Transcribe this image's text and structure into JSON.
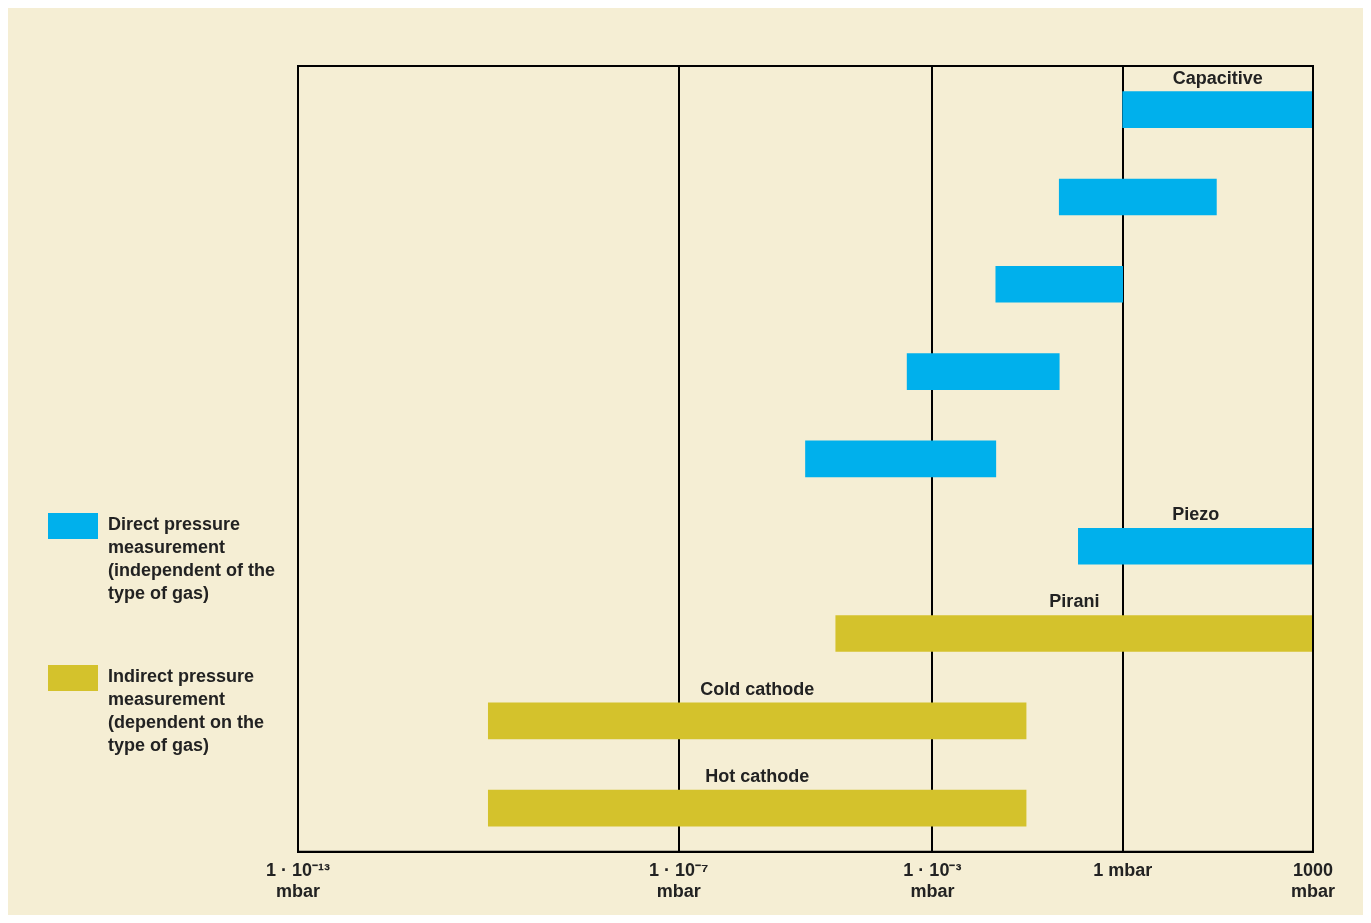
{
  "chart_data": {
    "type": "bar",
    "orientation": "horizontal",
    "log": "x",
    "grid": "x",
    "legend": "left",
    "categories": [
      "Capacitive",
      null,
      null,
      null,
      null,
      "Piezo",
      "Pirani",
      "Cold cathode",
      "Hot cathode"
    ],
    "series": [
      {
        "name": "Direct pressure measurement (independent of the type of gas)",
        "color": "#00b0ec",
        "base": [
          1,
          0.1,
          0.01,
          0.0004,
          1e-05,
          0.2,
          null,
          null,
          null
        ],
        "values": [
          999,
          29.9,
          0.99,
          0.0996,
          0.00999,
          999.8,
          null,
          null,
          null
        ]
      },
      {
        "name": "Indirect pressure measurement (dependent on the type of gas)",
        "color": "#d4c22c",
        "base": [
          null,
          null,
          null,
          null,
          null,
          null,
          3e-05,
          1e-10,
          1e-10
        ],
        "values": [
          null,
          null,
          null,
          null,
          null,
          null,
          999.99997,
          0.0299999999,
          0.0299999999
        ]
      }
    ],
    "xlim": [
      1e-13,
      1000
    ],
    "xticks": [
      {
        "value": 1e-13,
        "label": "1 · 10⁻¹³\nmbar"
      },
      {
        "value": 1e-07,
        "label": "1 · 10⁻⁷\nmbar"
      },
      {
        "value": 0.001,
        "label": "1 · 10⁻³\nmbar"
      },
      {
        "value": 1,
        "label": "1 mbar"
      },
      {
        "value": 1000,
        "label": "1000\nmbar"
      }
    ]
  }
}
